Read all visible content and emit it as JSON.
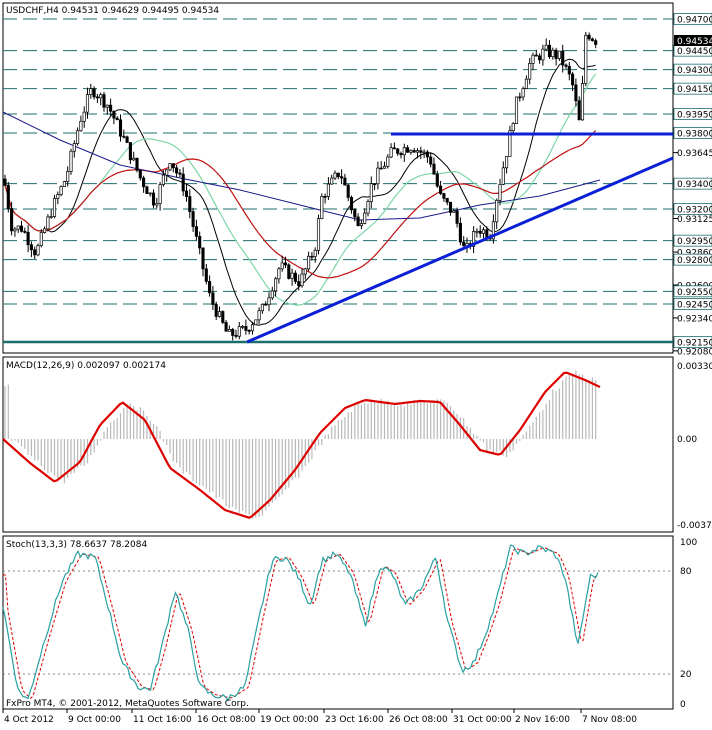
{
  "colors": {
    "background": "#ffffff",
    "candle_up": "#ffffff",
    "candle_down": "#000000",
    "level_line": "#1f6e6e",
    "trend_line": "#0b1fd6",
    "ma_fast": "#000000",
    "ma_mid": "#7ed6a8",
    "ma_slow_red": "#c01010",
    "ma_slow_blue": "#1a1a8c",
    "macd_hist": "#b8b8b8",
    "macd_signal": "#dd0000",
    "stoch_main": "#2aa0a0",
    "stoch_signal": "#dd0000",
    "price_tag_bg": "#000000",
    "price_tag_fg": "#ffffff"
  },
  "main_panel": {
    "title": "USDCHF,H4  0.94531 0.94629 0.94495 0.94534",
    "current_price": "0.94534",
    "price_labels": [
      "0.94700",
      "0.94450",
      "0.94300",
      "0.94150",
      "0.93950",
      "0.93800",
      "0.93645",
      "0.93400",
      "0.93200",
      "0.93125",
      "0.92950",
      "0.92860",
      "0.92800",
      "0.92600",
      "0.92550",
      "0.92450",
      "0.92340",
      "0.92150",
      "0.92080"
    ],
    "highlighted_labels": [
      "0.94700",
      "0.94450",
      "0.94300",
      "0.94150",
      "0.93950",
      "0.93800",
      "0.93400",
      "0.93200",
      "0.92950",
      "0.92800",
      "0.92550",
      "0.92450",
      "0.92150"
    ]
  },
  "macd_panel": {
    "title": "MACD(12,26,9) 0.002097 0.002174",
    "scale_labels": [
      "0.00330",
      "0.00",
      "-0.00373"
    ]
  },
  "stoch_panel": {
    "title": "Stoch(13,3,3) 78.6637 78.2084",
    "scale_labels": [
      "100",
      "80",
      "20",
      "0"
    ]
  },
  "time_axis": {
    "labels": [
      "4 Oct 2012",
      "9 Oct 00:00",
      "11 Oct 16:00",
      "16 Oct 08:00",
      "19 Oct 00:00",
      "23 Oct 16:00",
      "26 Oct 08:00",
      "31 Oct 00:00",
      "2 Nov 16:00",
      "7 Nov 08:00"
    ]
  },
  "footer": {
    "copyright": "FxPro MT4, © 2001-2012, MetaQuotes Software Corp."
  }
}
